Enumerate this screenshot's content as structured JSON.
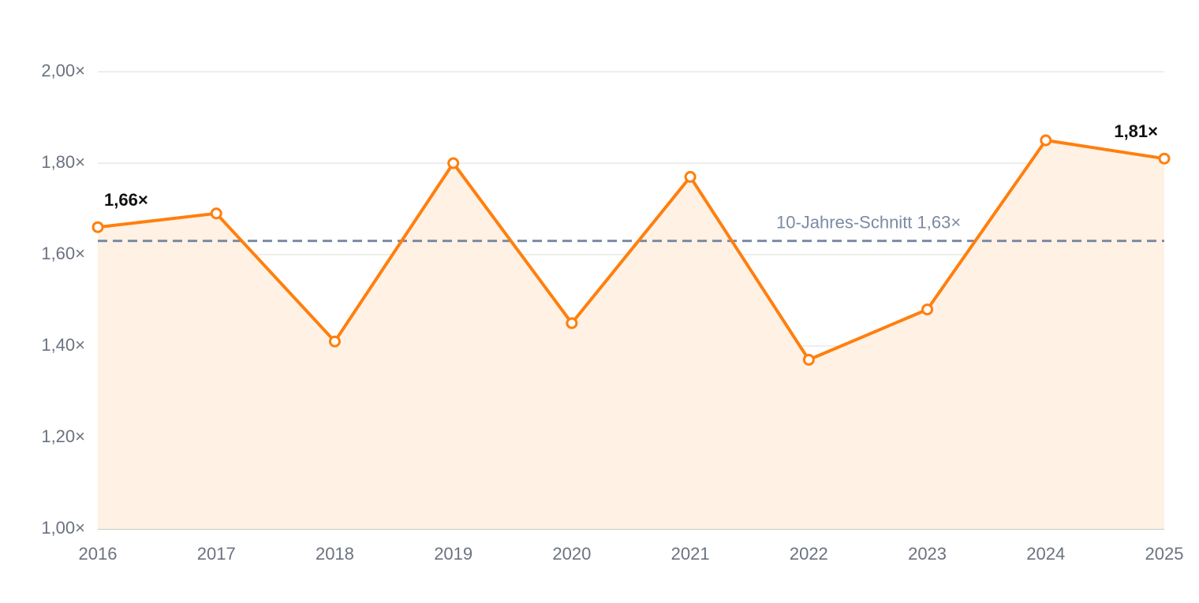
{
  "chart_data": {
    "type": "line",
    "categories": [
      "2016",
      "2017",
      "2018",
      "2019",
      "2020",
      "2021",
      "2022",
      "2023",
      "2024",
      "2025"
    ],
    "values": [
      1.66,
      1.69,
      1.41,
      1.8,
      1.45,
      1.77,
      1.37,
      1.48,
      1.85,
      1.81
    ],
    "value_labels": [
      "1,66×",
      null,
      null,
      null,
      null,
      null,
      null,
      null,
      null,
      "1,81×"
    ],
    "color": "#ff7f0e",
    "area_color": "#fff1e4",
    "ylim": [
      1.0,
      2.0
    ],
    "yticks": [
      {
        "value": 1.0,
        "label": "1,00×"
      },
      {
        "value": 1.2,
        "label": "1,20×"
      },
      {
        "value": 1.4,
        "label": "1,40×"
      },
      {
        "value": 1.6,
        "label": "1,60×"
      },
      {
        "value": 1.8,
        "label": "1,80×"
      },
      {
        "value": 2.0,
        "label": "2,00×"
      }
    ],
    "grid": true,
    "reference_line": {
      "value": 1.63,
      "label": "10-Jahres-Schnitt 1,63×",
      "color": "#7c8aa3"
    }
  }
}
